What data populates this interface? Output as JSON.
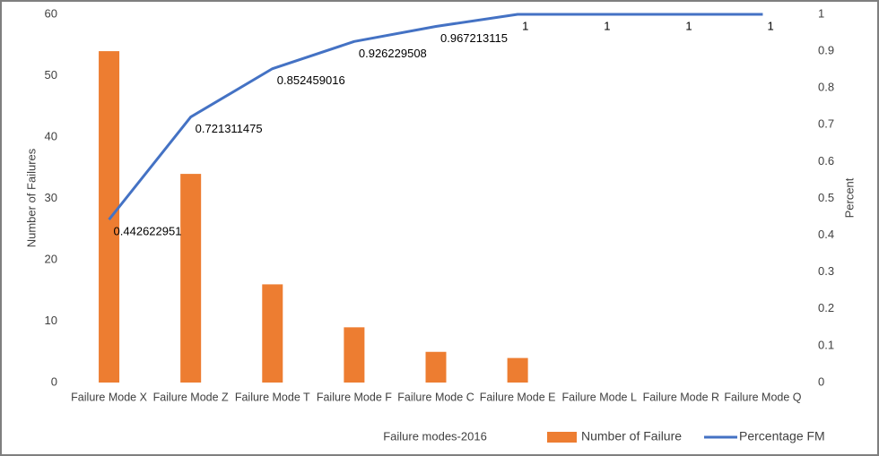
{
  "chart_data": {
    "type": "bar",
    "categories": [
      "Failure Mode X",
      "Failure Mode Z",
      "Failure Mode T",
      "Failure Mode F",
      "Failure Mode C",
      "Failure Mode E",
      "Failure Mode L",
      "Failure Mode R",
      "Failure Mode Q"
    ],
    "series": [
      {
        "name": "Number of Failure",
        "color": "#ed7d31",
        "type": "bar",
        "values": [
          54,
          34,
          16,
          9,
          5,
          4,
          0,
          0,
          0
        ]
      },
      {
        "name": "Percentage FM",
        "color": "#4472c4",
        "type": "line",
        "axis": "y2",
        "values": [
          0.442622951,
          0.721311475,
          0.852459016,
          0.926229508,
          0.967213115,
          1,
          1,
          1,
          1
        ]
      }
    ],
    "xlabel": "Failure modes-2016",
    "ylabel": "Number of Failures",
    "y2label": "Percent",
    "ylim": [
      0,
      60
    ],
    "yticks": [
      0,
      10,
      20,
      30,
      40,
      50,
      60
    ],
    "y2lim": [
      0,
      1
    ],
    "y2ticks": [
      0,
      0.1,
      0.2,
      0.3,
      0.4,
      0.5,
      0.6,
      0.7,
      0.8,
      0.9,
      1
    ],
    "grid": false,
    "legend": "bottom"
  }
}
